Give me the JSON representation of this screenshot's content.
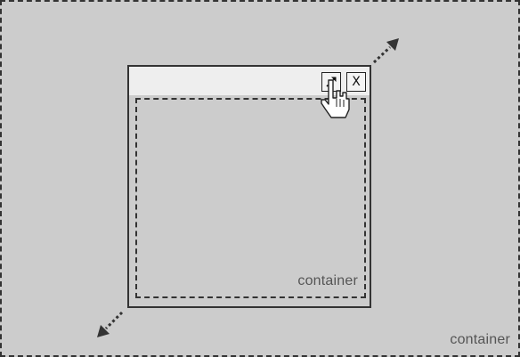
{
  "outer_container": {
    "label": "container"
  },
  "window": {
    "maximize_icon": "expand-arrow-icon",
    "close_label": "X",
    "inner_container": {
      "label": "container"
    }
  },
  "cursor_icon": "hand-pointer-icon",
  "resize_arrows": {
    "icon": "dashed-diagonal-arrow-icon"
  },
  "colors": {
    "background": "#cccccc",
    "titlebar": "#eeeeee",
    "border": "#333333",
    "label_text": "#555555"
  }
}
